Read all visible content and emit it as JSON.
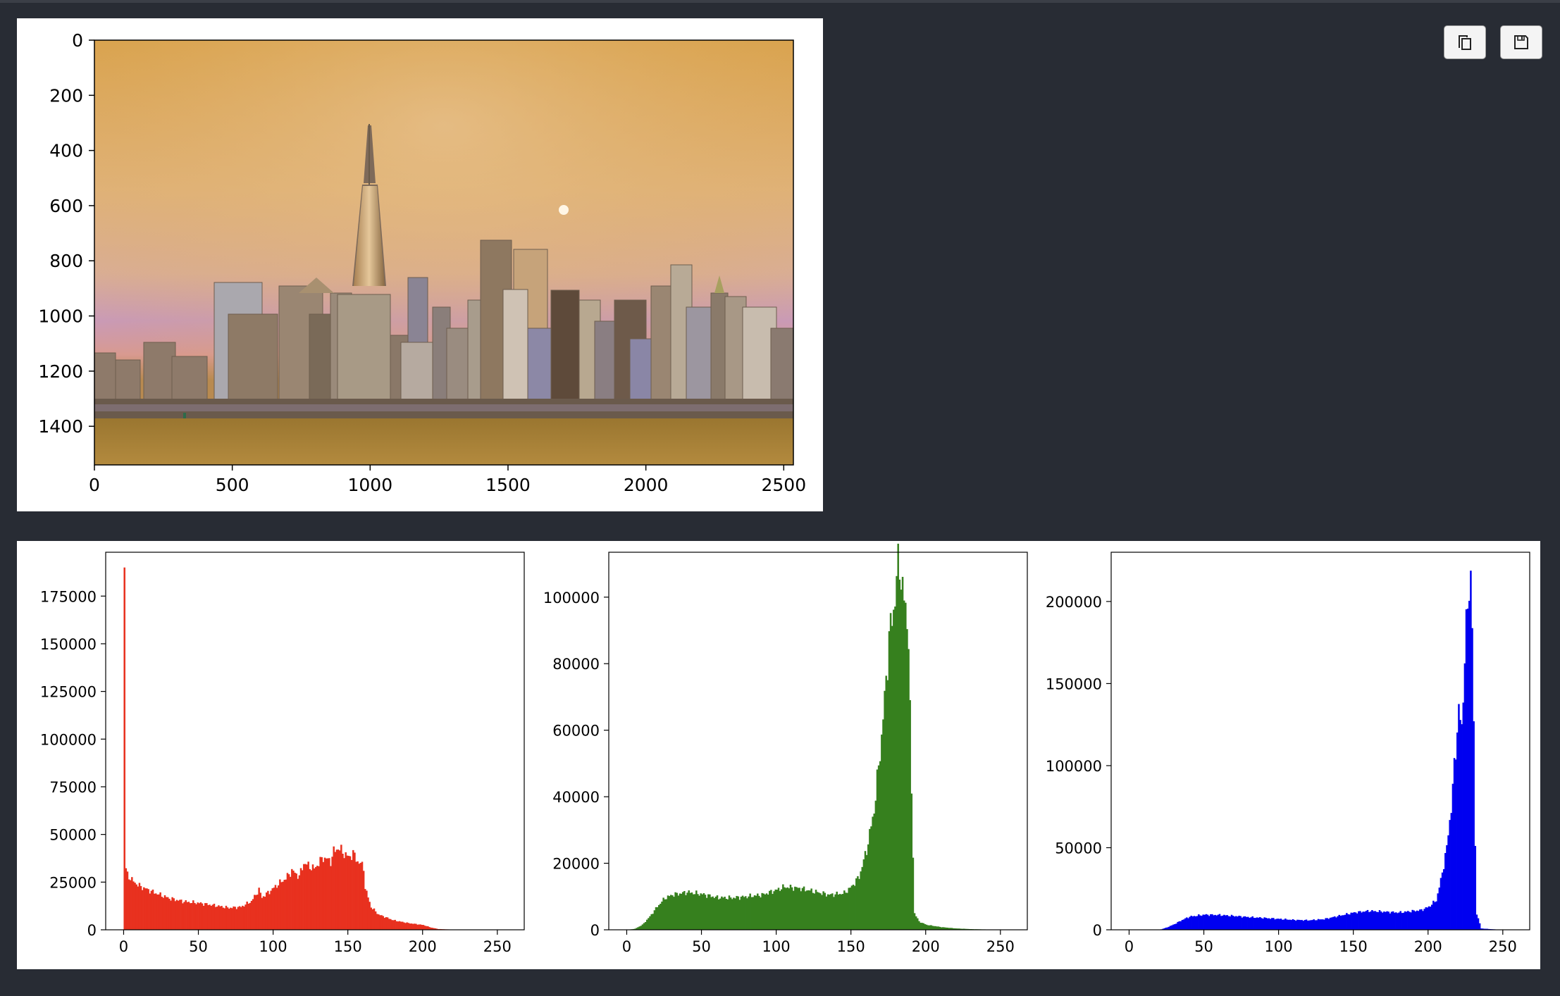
{
  "toolbar": {
    "copy_icon": "copy-icon",
    "save_icon": "floppy-disk-icon"
  },
  "colors": {
    "page_background": "#282c34",
    "red_channel": "#e8311f",
    "green_channel": "#36801e",
    "blue_channel": "#0000f0"
  },
  "chart_data": [
    {
      "type": "image",
      "content": "city skyline with sepia-tinted sky and water",
      "x_ticks": [
        "0",
        "500",
        "1000",
        "1500",
        "2000",
        "2500"
      ],
      "y_ticks": [
        "0",
        "200",
        "400",
        "600",
        "800",
        "1000",
        "1200",
        "1400"
      ],
      "xlim": [
        0,
        2535
      ],
      "ylim": [
        1540,
        0
      ]
    },
    {
      "type": "bar",
      "series_color": "#e8311f",
      "xlim": [
        -12,
        268
      ],
      "ylim": [
        0,
        198000
      ],
      "x_ticks": [
        "0",
        "50",
        "100",
        "150",
        "200",
        "250"
      ],
      "y_ticks": [
        "0",
        "25000",
        "50000",
        "75000",
        "100000",
        "125000",
        "150000",
        "175000"
      ],
      "peaks": [
        [
          0,
          190000
        ],
        [
          1,
          32000
        ],
        [
          2,
          29000
        ],
        [
          5,
          26000
        ],
        [
          10,
          23000
        ],
        [
          20,
          19500
        ],
        [
          30,
          16500
        ],
        [
          40,
          14800
        ],
        [
          50,
          14000
        ],
        [
          60,
          12800
        ],
        [
          70,
          11500
        ],
        [
          78,
          12000
        ],
        [
          85,
          15000
        ],
        [
          90,
          21000
        ],
        [
          92,
          17000
        ],
        [
          97,
          20000
        ],
        [
          103,
          24000
        ],
        [
          108,
          27000
        ],
        [
          112,
          31000
        ],
        [
          117,
          28000
        ],
        [
          120,
          35000
        ],
        [
          127,
          32000
        ],
        [
          133,
          38000
        ],
        [
          138,
          36000
        ],
        [
          140,
          41000
        ],
        [
          143,
          43000
        ],
        [
          147,
          40000
        ],
        [
          150,
          38000
        ],
        [
          153,
          40000
        ],
        [
          156,
          36000
        ],
        [
          160,
          33000
        ],
        [
          161,
          22000
        ],
        [
          165,
          12000
        ],
        [
          170,
          8000
        ],
        [
          180,
          5000
        ],
        [
          190,
          3500
        ],
        [
          200,
          2500
        ],
        [
          205,
          1200
        ],
        [
          210,
          400
        ],
        [
          220,
          100
        ],
        [
          255,
          0
        ]
      ]
    },
    {
      "type": "bar",
      "series_color": "#36801e",
      "xlim": [
        -12,
        268
      ],
      "ylim": [
        0,
        113500
      ],
      "x_ticks": [
        "0",
        "50",
        "100",
        "150",
        "200",
        "250"
      ],
      "y_ticks": [
        "0",
        "20000",
        "40000",
        "60000",
        "80000",
        "100000"
      ],
      "peaks": [
        [
          0,
          0
        ],
        [
          5,
          300
        ],
        [
          10,
          1500
        ],
        [
          15,
          4000
        ],
        [
          20,
          7000
        ],
        [
          25,
          9500
        ],
        [
          30,
          10500
        ],
        [
          40,
          11300
        ],
        [
          50,
          10700
        ],
        [
          60,
          9700
        ],
        [
          70,
          9600
        ],
        [
          80,
          10000
        ],
        [
          90,
          10500
        ],
        [
          100,
          12000
        ],
        [
          105,
          12900
        ],
        [
          115,
          12500
        ],
        [
          125,
          11500
        ],
        [
          135,
          10500
        ],
        [
          145,
          11000
        ],
        [
          150,
          13000
        ],
        [
          155,
          16000
        ],
        [
          160,
          24000
        ],
        [
          165,
          36000
        ],
        [
          170,
          58000
        ],
        [
          173,
          75000
        ],
        [
          175,
          88000
        ],
        [
          178,
          96000
        ],
        [
          180,
          106000
        ],
        [
          182,
          110000
        ],
        [
          184,
          103000
        ],
        [
          186,
          95000
        ],
        [
          188,
          90000
        ],
        [
          190,
          40000
        ],
        [
          192,
          5000
        ],
        [
          195,
          2500
        ],
        [
          200,
          1500
        ],
        [
          210,
          800
        ],
        [
          220,
          400
        ],
        [
          230,
          200
        ],
        [
          240,
          100
        ],
        [
          250,
          100
        ],
        [
          255,
          0
        ]
      ]
    },
    {
      "type": "bar",
      "series_color": "#0000f0",
      "xlim": [
        -12,
        268
      ],
      "ylim": [
        0,
        230000
      ],
      "x_ticks": [
        "0",
        "50",
        "100",
        "150",
        "200",
        "250"
      ],
      "y_ticks": [
        "0",
        "50000",
        "100000",
        "150000",
        "200000"
      ],
      "peaks": [
        [
          0,
          0
        ],
        [
          20,
          0
        ],
        [
          25,
          1500
        ],
        [
          30,
          3500
        ],
        [
          35,
          6000
        ],
        [
          40,
          8000
        ],
        [
          50,
          9200
        ],
        [
          60,
          9000
        ],
        [
          70,
          8400
        ],
        [
          80,
          7700
        ],
        [
          90,
          7200
        ],
        [
          100,
          6600
        ],
        [
          110,
          6000
        ],
        [
          120,
          5800
        ],
        [
          130,
          6500
        ],
        [
          140,
          8500
        ],
        [
          150,
          10500
        ],
        [
          160,
          11500
        ],
        [
          170,
          11000
        ],
        [
          180,
          10500
        ],
        [
          190,
          11500
        ],
        [
          195,
          12000
        ],
        [
          200,
          14000
        ],
        [
          205,
          18000
        ],
        [
          208,
          30000
        ],
        [
          212,
          50000
        ],
        [
          215,
          75000
        ],
        [
          218,
          110000
        ],
        [
          220,
          135000
        ],
        [
          222,
          120000
        ],
        [
          224,
          170000
        ],
        [
          226,
          195000
        ],
        [
          227,
          205000
        ],
        [
          228,
          220000
        ],
        [
          229,
          190000
        ],
        [
          230,
          120000
        ],
        [
          231,
          50000
        ],
        [
          232,
          10000
        ],
        [
          235,
          800
        ],
        [
          245,
          200
        ],
        [
          255,
          0
        ]
      ]
    }
  ]
}
